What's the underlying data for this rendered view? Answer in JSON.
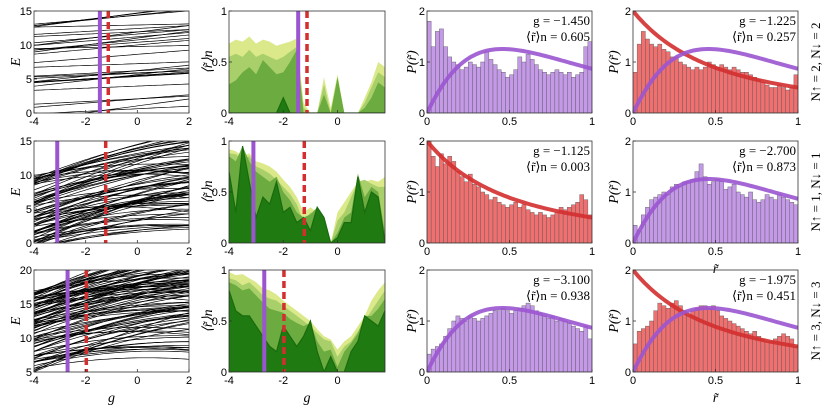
{
  "colors": {
    "purple": "#9b55d0",
    "purple_fill": "#c49ae8",
    "red": "#d32f2f",
    "red_fill": "#f07070",
    "green_layers": [
      "#dbe98a",
      "#a9cf6a",
      "#6bab3f",
      "#1f7a12"
    ]
  },
  "chart_data": [
    {
      "panel": "row1-energy",
      "type": "line",
      "ylabel": "E",
      "xlabel": "",
      "xlim": [
        -4,
        2
      ],
      "ylim": [
        0,
        15
      ],
      "xticks": [
        "-4",
        "-2",
        "0",
        "2"
      ],
      "yticks": [
        "0",
        "5",
        "10",
        "15"
      ],
      "purple_line_g": -1.45,
      "red_dashed_g": -1.125
    },
    {
      "panel": "row2-energy",
      "type": "line",
      "ylabel": "E",
      "xlabel": "",
      "xlim": [
        -4,
        2
      ],
      "ylim": [
        0,
        15
      ],
      "xticks": [
        "-4",
        "-2",
        "0",
        "2"
      ],
      "yticks": [
        "0",
        "5",
        "10",
        "15"
      ],
      "purple_line_g": -3.1,
      "red_dashed_g": -1.225
    },
    {
      "panel": "row3-energy",
      "type": "line",
      "ylabel": "E",
      "xlabel": "g",
      "xlim": [
        -4,
        2
      ],
      "ylim": [
        5,
        20
      ],
      "xticks": [
        "-4",
        "-2",
        "0",
        "2"
      ],
      "yticks": [
        "5",
        "10",
        "15",
        "20"
      ],
      "purple_line_g": -2.7,
      "red_dashed_g": -1.975
    },
    {
      "panel": "row1-ratio",
      "type": "area",
      "ylabel": "⟨r̃⟩n",
      "xlabel": "",
      "xlim": [
        -4,
        1.75
      ],
      "ylim": [
        0,
        1
      ],
      "xticks": [
        "-4",
        "-2",
        "0"
      ],
      "yticks": [
        "0",
        "0.5",
        "1"
      ],
      "purple_line_g": -1.45,
      "red_dashed_g": -1.125,
      "g": [
        -4,
        -3.75,
        -3.5,
        -3.25,
        -3,
        -2.75,
        -2.5,
        -2.25,
        -2,
        -1.75,
        -1.5,
        -1.25,
        -1,
        -0.75,
        -0.5,
        -0.25,
        0,
        0.25,
        0.5,
        0.75,
        1,
        1.25,
        1.5,
        1.75
      ],
      "layers": [
        [
          0.68,
          0.72,
          0.7,
          0.75,
          0.68,
          0.72,
          0.7,
          0.66,
          0.68,
          0.7,
          0.73,
          0.1,
          0,
          0,
          0.35,
          0.05,
          0.38,
          0,
          0,
          0,
          0.15,
          0.3,
          0.5,
          0.45
        ],
        [
          0.55,
          0.58,
          0.55,
          0.62,
          0.55,
          0.58,
          0.55,
          0.52,
          0.55,
          0.6,
          0.65,
          0.05,
          0,
          0,
          0.28,
          0,
          0.35,
          0,
          0,
          0,
          0.1,
          0.25,
          0.4,
          0.35
        ],
        [
          0.28,
          0.32,
          0.4,
          0.45,
          0.38,
          0.52,
          0.45,
          0.38,
          0.4,
          0.5,
          0.62,
          0,
          0,
          0,
          0.18,
          0,
          0.35,
          0,
          0,
          0,
          0.05,
          0.15,
          0.3,
          0.25
        ],
        [
          0,
          0,
          0,
          0,
          0,
          0,
          0,
          0,
          0.15,
          0,
          0,
          0,
          0,
          0,
          0,
          0,
          0,
          0,
          0,
          0,
          0,
          0,
          0,
          0
        ]
      ]
    },
    {
      "panel": "row2-ratio",
      "type": "area",
      "ylabel": "⟨r̃⟩n",
      "xlabel": "",
      "xlim": [
        -4,
        1.75
      ],
      "ylim": [
        0,
        1
      ],
      "xticks": [
        "-4",
        "-2",
        "0"
      ],
      "yticks": [
        "0",
        "0.5",
        "1"
      ],
      "purple_line_g": -3.1,
      "red_dashed_g": -1.225,
      "g": [
        -4,
        -3.75,
        -3.5,
        -3.25,
        -3,
        -2.75,
        -2.5,
        -2.25,
        -2,
        -1.75,
        -1.5,
        -1.25,
        -1,
        -0.75,
        -0.5,
        -0.25,
        0,
        0.25,
        0.5,
        0.75,
        1,
        1.25,
        1.5,
        1.75
      ],
      "layers": [
        [
          0.92,
          0.9,
          0.85,
          0.88,
          0.8,
          0.78,
          0.75,
          0.7,
          0.62,
          0.55,
          0.45,
          0.3,
          0.35,
          0.3,
          0.25,
          0,
          0.3,
          0.4,
          0.5,
          0.6,
          0.6,
          0.62,
          0.6,
          0.65
        ],
        [
          0.88,
          0.87,
          0.82,
          0.85,
          0.75,
          0.72,
          0.68,
          0.62,
          0.55,
          0.48,
          0.38,
          0.2,
          0.3,
          0.28,
          0.2,
          0,
          0.22,
          0.3,
          0.45,
          0.6,
          0.62,
          0.58,
          0.55,
          0.55
        ],
        [
          0.85,
          0.8,
          0.95,
          0.8,
          0.7,
          0.65,
          0.6,
          0.65,
          0.5,
          0.42,
          0.3,
          0.25,
          0.28,
          0.35,
          0.25,
          0,
          0.1,
          0.25,
          0.3,
          0.68,
          0.45,
          0.55,
          0.5,
          0.1
        ],
        [
          0.7,
          0.3,
          0.95,
          0.6,
          0.25,
          0.45,
          0.38,
          0.6,
          0.3,
          0.35,
          0.2,
          0.25,
          0.12,
          0.35,
          0.25,
          0,
          0.05,
          0.2,
          0.2,
          0.65,
          0.3,
          0.5,
          0.45,
          0
        ]
      ]
    },
    {
      "panel": "row3-ratio",
      "type": "area",
      "ylabel": "⟨r̃⟩n",
      "xlabel": "g",
      "xlim": [
        -4,
        1.75
      ],
      "ylim": [
        0,
        1
      ],
      "xticks": [
        "-4",
        "-2",
        "0"
      ],
      "yticks": [
        "0",
        "0.5",
        "1"
      ],
      "purple_line_g": -2.7,
      "red_dashed_g": -1.975,
      "g": [
        -4,
        -3.75,
        -3.5,
        -3.25,
        -3,
        -2.75,
        -2.5,
        -2.25,
        -2,
        -1.75,
        -1.5,
        -1.25,
        -1,
        -0.75,
        -0.5,
        -0.25,
        0,
        0.25,
        0.5,
        0.75,
        1,
        1.25,
        1.5,
        1.75
      ],
      "layers": [
        [
          0.98,
          0.95,
          0.96,
          0.92,
          0.88,
          0.82,
          0.8,
          0.76,
          0.7,
          0.65,
          0.6,
          0.55,
          0.5,
          0.42,
          0.35,
          0.32,
          0.22,
          0.3,
          0.35,
          0.45,
          0.55,
          0.7,
          0.8,
          0.88
        ],
        [
          0.92,
          0.9,
          0.85,
          0.88,
          0.82,
          0.75,
          0.72,
          0.7,
          0.65,
          0.6,
          0.55,
          0.5,
          0.45,
          0.38,
          0.32,
          0.3,
          0.15,
          0.25,
          0.3,
          0.4,
          0.5,
          0.6,
          0.7,
          0.8
        ],
        [
          0.88,
          0.85,
          0.8,
          0.82,
          0.75,
          0.68,
          0.62,
          0.6,
          0.58,
          0.52,
          0.48,
          0.45,
          0.48,
          0.3,
          0.2,
          0.22,
          0.05,
          0.2,
          0.28,
          0.38,
          0.55,
          0.55,
          0.62,
          0.72
        ],
        [
          0.8,
          0.6,
          0.55,
          0.55,
          0.45,
          0.35,
          0.25,
          0.2,
          0.45,
          0.35,
          0.25,
          0.35,
          0.5,
          0.2,
          0,
          0.15,
          0,
          0,
          0.2,
          0.3,
          0.55,
          0.5,
          0.45,
          0.6
        ]
      ]
    },
    {
      "panel": "row1-hist-goe",
      "type": "bar",
      "ylabel": "P(r̃)",
      "xlabel": "",
      "xlim": [
        0,
        1
      ],
      "ylim": [
        0,
        2
      ],
      "xticks": [
        "0",
        "0.5",
        "1"
      ],
      "yticks": [
        "0",
        "1",
        "2"
      ],
      "color": "purple",
      "curves": [
        "GOE"
      ],
      "g_text": "g = −1.450",
      "r_text": "⟨r̃⟩n = 0.605",
      "values": [
        1.8,
        1.3,
        1.6,
        1.65,
        1.3,
        1.1,
        1.0,
        0.95,
        0.85,
        0.9,
        1.0,
        0.95,
        0.9,
        1.0,
        1.2,
        1.05,
        0.95,
        0.85,
        0.8,
        0.7,
        0.75,
        0.85,
        1.1,
        1.0,
        1.15,
        1.05,
        0.95,
        0.85,
        0.8,
        0.75,
        0.8,
        0.85,
        0.8,
        0.75,
        0.8,
        0.7,
        0.75,
        0.8,
        1.3,
        1.4
      ]
    },
    {
      "panel": "row1-hist-poisson",
      "type": "bar",
      "ylabel": "P(r̃)",
      "xlabel": "",
      "xlim": [
        0,
        1
      ],
      "ylim": [
        0,
        2
      ],
      "xticks": [
        "0",
        "0.5",
        "1"
      ],
      "yticks": [
        "0",
        "1",
        "2"
      ],
      "color": "red",
      "curves": [
        "Poisson"
      ],
      "g_text": "g = −1.125",
      "r_text": "⟨r̃⟩n = 0.003",
      "row_label": "N↑ = 1, N↓ = 1",
      "values": [
        2.0,
        1.7,
        1.5,
        1.75,
        1.55,
        1.7,
        1.6,
        1.4,
        1.3,
        1.2,
        1.35,
        1.15,
        1.1,
        1.0,
        0.95,
        0.85,
        0.9,
        0.8,
        0.75,
        0.7,
        0.75,
        0.8,
        0.7,
        0.75,
        0.65,
        0.6,
        0.55,
        0.6,
        0.55,
        0.5,
        0.55,
        0.6,
        0.7,
        0.65,
        0.7,
        0.75,
        0.8,
        0.95,
        0.85,
        0.55
      ]
    },
    {
      "panel": "row2-hist-goe",
      "type": "bar",
      "ylabel": "P(r̃)",
      "xlabel": "",
      "xlim": [
        0,
        1
      ],
      "ylim": [
        0,
        2
      ],
      "xticks": [
        "0",
        "0.5",
        "1"
      ],
      "yticks": [
        "0",
        "1",
        "2"
      ],
      "color": "purple",
      "curves": [
        "GOE"
      ],
      "g_text": "g = −3.100",
      "r_text": "⟨r̃⟩n = 0.938",
      "values": [
        0.35,
        0.45,
        0.5,
        0.55,
        0.7,
        0.85,
        1.0,
        1.1,
        1.05,
        1.0,
        1.1,
        1.05,
        1.0,
        1.05,
        1.1,
        1.15,
        1.2,
        1.2,
        1.25,
        1.2,
        1.15,
        1.2,
        1.25,
        1.3,
        1.35,
        1.3,
        1.2,
        1.15,
        1.1,
        1.05,
        1.1,
        1.0,
        1.05,
        1.0,
        0.95,
        0.9,
        0.85,
        0.8,
        0.9,
        0.65
      ]
    },
    {
      "panel": "row2-hist-poisson",
      "type": "bar",
      "ylabel": "P(r̃)",
      "xlabel": "",
      "xlim": [
        0,
        1
      ],
      "ylim": [
        0,
        2
      ],
      "xticks": [
        "0",
        "0.5",
        "1"
      ],
      "yticks": [
        "0",
        "1",
        "2"
      ],
      "color": "red",
      "curves": [
        "Poisson",
        "GOE"
      ],
      "g_text": "g = −1.225",
      "r_text": "⟨r̃⟩n = 0.257",
      "row_label": "N↑ = 2, N↓ = 2",
      "values": [
        0.8,
        1.35,
        1.6,
        1.45,
        1.35,
        1.3,
        1.35,
        1.25,
        1.2,
        1.1,
        1.1,
        1.0,
        0.95,
        0.9,
        0.85,
        0.9,
        0.85,
        0.9,
        1.0,
        0.95,
        0.9,
        0.95,
        0.9,
        0.85,
        0.9,
        0.85,
        0.8,
        0.8,
        0.75,
        0.7,
        0.65,
        0.6,
        0.55,
        0.5,
        0.5,
        0.55,
        0.5,
        0.45,
        0.5,
        0.75
      ]
    },
    {
      "panel": "row3-hist-goe",
      "type": "bar",
      "ylabel": "P(r̃)",
      "xlabel": "r̃",
      "xlim": [
        0,
        1
      ],
      "ylim": [
        0,
        2
      ],
      "xticks": [
        "0",
        "0.5",
        "1"
      ],
      "yticks": [
        "0",
        "1",
        "2"
      ],
      "color": "purple",
      "curves": [
        "GOE"
      ],
      "g_text": "g = −2.700",
      "r_text": "⟨r̃⟩n = 0.873",
      "values": [
        0.35,
        0.25,
        0.55,
        0.7,
        0.85,
        0.9,
        0.95,
        1.0,
        0.95,
        1.1,
        1.15,
        1.1,
        1.2,
        1.2,
        1.25,
        1.4,
        1.55,
        1.3,
        1.15,
        1.2,
        1.25,
        1.2,
        1.05,
        1.1,
        1.15,
        1.0,
        0.95,
        0.9,
        1.0,
        0.85,
        0.8,
        0.85,
        0.95,
        0.9,
        0.85,
        0.95,
        0.9,
        0.85,
        0.8,
        0.75
      ]
    },
    {
      "panel": "row3-hist-poisson",
      "type": "bar",
      "ylabel": "P(r̃)",
      "xlabel": "r̃",
      "xlim": [
        0,
        1
      ],
      "ylim": [
        0,
        2
      ],
      "xticks": [
        "0",
        "0.5",
        "1"
      ],
      "yticks": [
        "0",
        "1",
        "2"
      ],
      "color": "red",
      "curves": [
        "Poisson",
        "GOE"
      ],
      "g_text": "g = −1.975",
      "r_text": "⟨r̃⟩n = 0.451",
      "row_label": "N↑ = 3, N↓ = 3",
      "values": [
        0.55,
        0.8,
        0.85,
        0.9,
        1.0,
        1.2,
        1.35,
        1.3,
        1.25,
        1.35,
        1.4,
        1.3,
        1.2,
        1.1,
        1.2,
        1.25,
        1.3,
        1.3,
        1.25,
        1.3,
        1.2,
        1.1,
        1.05,
        1.0,
        0.95,
        0.9,
        0.85,
        0.8,
        0.75,
        0.8,
        0.7,
        0.65,
        0.6,
        0.6,
        0.65,
        0.7,
        0.75,
        0.7,
        0.65,
        0.5
      ]
    }
  ]
}
